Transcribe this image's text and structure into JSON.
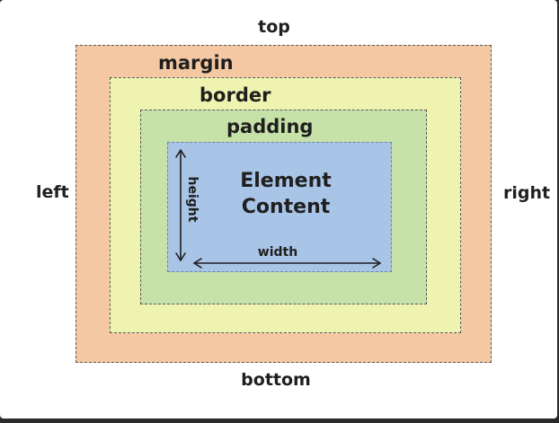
{
  "sides": {
    "top": "top",
    "bottom": "bottom",
    "left": "left",
    "right": "right"
  },
  "boxes": {
    "margin": "margin",
    "border": "border",
    "padding": "padding",
    "content_line1": "Element",
    "content_line2": "Content"
  },
  "dimensions": {
    "width": "width",
    "height": "height"
  },
  "colors": {
    "margin": "#f3c8a2",
    "border": "#eef3b0",
    "padding": "#c7e2a8",
    "content": "#a8c4e6"
  }
}
